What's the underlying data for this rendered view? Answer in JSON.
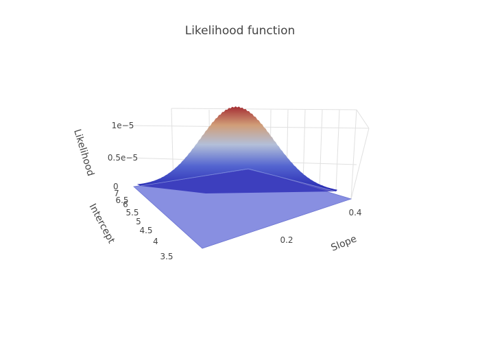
{
  "chart_data": {
    "type": "surface",
    "title": "Likelihood function",
    "xlabel": "Intercept",
    "ylabel": "Slope",
    "zlabel": "Likelihood",
    "x_ticks": [
      "3.5",
      "4",
      "4.5",
      "5",
      "5.5",
      "6",
      "6.5",
      "7"
    ],
    "y_ticks": [
      "0.2",
      "0.4"
    ],
    "z_ticks": [
      "0",
      "0.5e−5",
      "1e−5"
    ],
    "xlim": [
      3.4,
      7.2
    ],
    "ylim": [
      0.0,
      0.48
    ],
    "zlim": [
      0,
      1.2e-05
    ],
    "peak": {
      "intercept": 5.6,
      "slope": 0.36,
      "likelihood": 1.2e-05
    },
    "colorscale": [
      "#1f1fa8",
      "#5a6fd6",
      "#b4c0dc",
      "#d8a878",
      "#a83030"
    ],
    "base_plane_color": "#7b83de"
  }
}
